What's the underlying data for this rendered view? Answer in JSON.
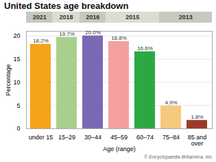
{
  "chart_data": {
    "type": "bar",
    "title": "United States age breakdown",
    "categories": [
      "under 15",
      "15–29",
      "30–44",
      "45–59",
      "60–74",
      "75–84",
      "85 and over"
    ],
    "values": [
      18.2,
      19.7,
      20.0,
      18.8,
      16.6,
      4.9,
      1.8
    ],
    "value_labels": [
      "18.2%",
      "19.7%",
      "20.0%",
      "18.8%",
      "16.6%",
      "4.9%",
      "1.8%"
    ],
    "colors": [
      "#f5a31a",
      "#a8cf8e",
      "#7b68b5",
      "#f4a0a0",
      "#2ca843",
      "#f7c97e",
      "#9b3a2a"
    ],
    "xlabel": "Age (range)",
    "ylabel": "Percentage",
    "ylim": [
      0,
      21
    ],
    "yticks": [
      0,
      5,
      10,
      15,
      20
    ],
    "grid": true,
    "data_labels": true,
    "annotations": [
      {
        "text": "2021",
        "from": "under 15",
        "to": "under 15"
      },
      {
        "text": "2018",
        "from": "15–29",
        "to": "15–29"
      },
      {
        "text": "2016",
        "from": "30–44",
        "to": "30–44"
      },
      {
        "text": "2015",
        "from": "45–59",
        "to": "60–74"
      },
      {
        "text": "2013",
        "from": "75–84",
        "to": "85 and over"
      },
      {
        "text": "© Encyclopaedia Britannica, Inc."
      }
    ]
  }
}
